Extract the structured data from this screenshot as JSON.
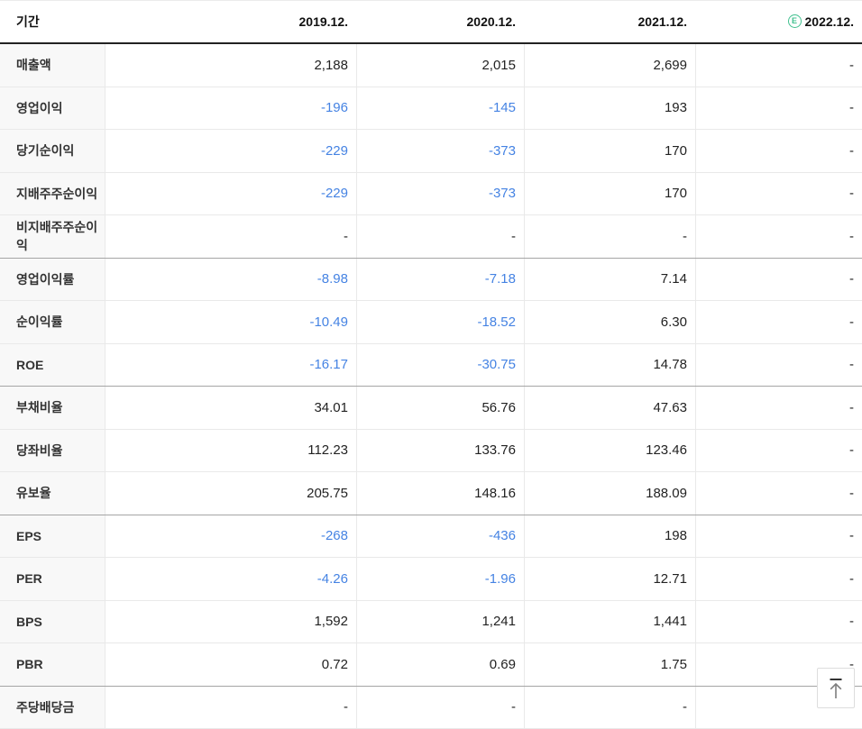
{
  "header": {
    "period_label": "기간",
    "columns": [
      "2019.12.",
      "2020.12.",
      "2021.12.",
      "2022.12."
    ],
    "estimate_mark": "E"
  },
  "table": {
    "rows": [
      {
        "label": "매출액",
        "values": [
          "2,188",
          "2,015",
          "2,699",
          "-"
        ],
        "section_start": false
      },
      {
        "label": "영업이익",
        "values": [
          "-196",
          "-145",
          "193",
          "-"
        ],
        "section_start": false
      },
      {
        "label": "당기순이익",
        "values": [
          "-229",
          "-373",
          "170",
          "-"
        ],
        "section_start": false
      },
      {
        "label": "지배주주순이익",
        "values": [
          "-229",
          "-373",
          "170",
          "-"
        ],
        "section_start": false
      },
      {
        "label": "비지배주주순이익",
        "values": [
          "-",
          "-",
          "-",
          "-"
        ],
        "section_start": false
      },
      {
        "label": "영업이익률",
        "values": [
          "-8.98",
          "-7.18",
          "7.14",
          "-"
        ],
        "section_start": true
      },
      {
        "label": "순이익률",
        "values": [
          "-10.49",
          "-18.52",
          "6.30",
          "-"
        ],
        "section_start": false
      },
      {
        "label": "ROE",
        "values": [
          "-16.17",
          "-30.75",
          "14.78",
          "-"
        ],
        "section_start": false
      },
      {
        "label": "부채비율",
        "values": [
          "34.01",
          "56.76",
          "47.63",
          "-"
        ],
        "section_start": true
      },
      {
        "label": "당좌비율",
        "values": [
          "112.23",
          "133.76",
          "123.46",
          "-"
        ],
        "section_start": false
      },
      {
        "label": "유보율",
        "values": [
          "205.75",
          "148.16",
          "188.09",
          "-"
        ],
        "section_start": false
      },
      {
        "label": "EPS",
        "values": [
          "-268",
          "-436",
          "198",
          "-"
        ],
        "section_start": true
      },
      {
        "label": "PER",
        "values": [
          "-4.26",
          "-1.96",
          "12.71",
          "-"
        ],
        "section_start": false
      },
      {
        "label": "BPS",
        "values": [
          "1,592",
          "1,241",
          "1,441",
          "-"
        ],
        "section_start": false
      },
      {
        "label": "PBR",
        "values": [
          "0.72",
          "0.69",
          "1.75",
          "-"
        ],
        "section_start": false
      },
      {
        "label": "주당배당금",
        "values": [
          "-",
          "-",
          "-",
          "-"
        ],
        "section_start": true
      }
    ]
  },
  "colors": {
    "negative_value_blue": "#4583e3",
    "estimate_badge_green": "#41c08f",
    "section_divider_gray": "#a5a5a5",
    "row_divider_gray": "#e9e9e9",
    "header_divider_dark": "#222222",
    "label_column_background": "#f8f8f8"
  }
}
